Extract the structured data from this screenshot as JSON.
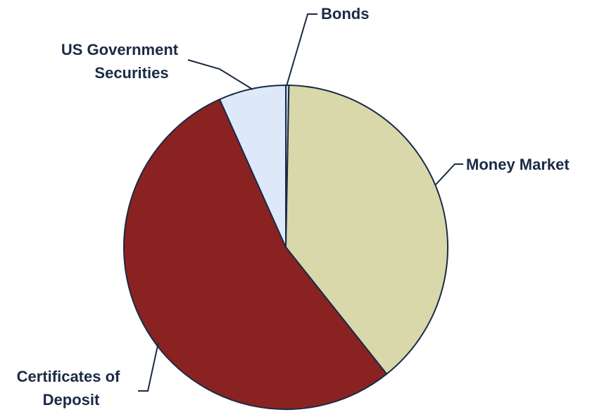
{
  "chart_data": {
    "type": "pie",
    "title": "",
    "slices": [
      {
        "label": "Bonds",
        "value": 0.3,
        "color": "#c8dcf0"
      },
      {
        "label": "Money Market",
        "value": 39.0,
        "color": "#d8d8aa"
      },
      {
        "label": "Certificates of Deposit",
        "value": 54.0,
        "color": "#8b2222"
      },
      {
        "label": "US Government Securities",
        "value": 6.7,
        "color": "#dde9f8"
      }
    ],
    "start": "12 o'clock",
    "direction": "clockwise",
    "slice_border_color": "#1b2a45",
    "legend": "none (leader-line labels)"
  },
  "labels": {
    "bonds": "Bonds",
    "money_market": "Money Market",
    "cd_line1": "Certificates of",
    "cd_line2": "Deposit",
    "usgov_line1": "US Government",
    "usgov_line2": "Securities"
  },
  "colors": {
    "label_text": "#1b2a45",
    "leader_line": "#1b2a45"
  }
}
